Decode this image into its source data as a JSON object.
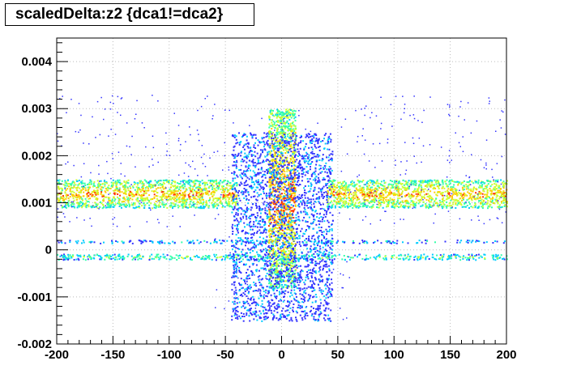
{
  "chart_data": {
    "type": "heatmap",
    "title": "scaledDelta:z2 {dca1!=dca2}",
    "xlabel": "",
    "ylabel": "",
    "xlim": [
      -200,
      200
    ],
    "ylim": [
      -0.002,
      0.0045
    ],
    "grid": true,
    "x_ticks": [
      -200,
      -150,
      -100,
      -50,
      0,
      50,
      100,
      150,
      200
    ],
    "x_tick_labels": [
      "-200",
      "-150",
      "-100",
      "-50",
      "0",
      "50",
      "100",
      "150",
      "200"
    ],
    "y_ticks": [
      -0.002,
      -0.001,
      0,
      0.001,
      0.002,
      0.003,
      0.004
    ],
    "y_tick_labels": [
      "-0.002",
      "-0.001",
      "0",
      "0.001",
      "0.002",
      "0.003",
      "0.004"
    ],
    "color_palette": [
      "#3333ff",
      "#00ccff",
      "#33ffaa",
      "#ccff33",
      "#ffcc00",
      "#ff3300"
    ],
    "regions": [
      {
        "name": "upper-band-left",
        "x": [
          -200,
          -40
        ],
        "y": [
          0.0009,
          0.0015
        ],
        "level": 0.75
      },
      {
        "name": "upper-band-right",
        "x": [
          40,
          200
        ],
        "y": [
          0.0009,
          0.0015
        ],
        "level": 0.75
      },
      {
        "name": "lower-band",
        "x": [
          -200,
          200
        ],
        "y": [
          -0.0002,
          -8e-05
        ],
        "level": 0.45
      },
      {
        "name": "thin-band",
        "x": [
          -200,
          200
        ],
        "y": [
          0.00015,
          0.00022
        ],
        "level": 0.25
      },
      {
        "name": "central-column",
        "x": [
          -12,
          12
        ],
        "y": [
          -0.0008,
          0.003
        ],
        "level": 0.85
      },
      {
        "name": "central-halo",
        "x": [
          -45,
          45
        ],
        "y": [
          -0.0015,
          0.0025
        ],
        "level": 0.15
      }
    ]
  }
}
